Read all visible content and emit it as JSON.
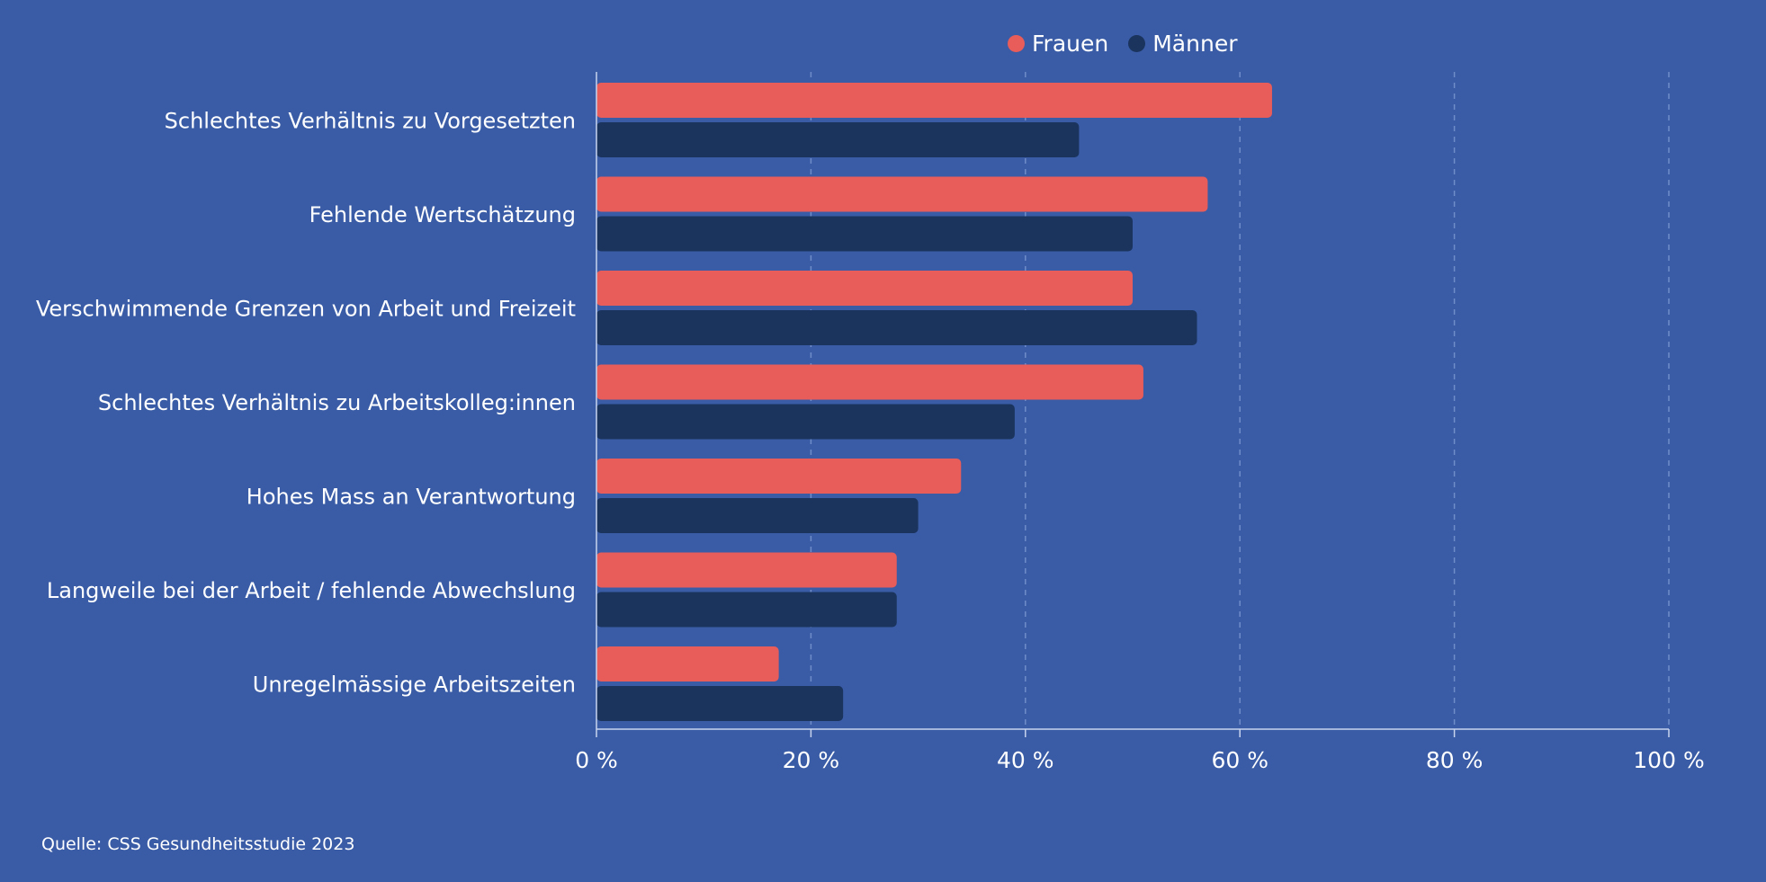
{
  "chart_data": {
    "type": "bar",
    "orientation": "horizontal",
    "categories": [
      "Schlechtes Verhältnis zu Vorgesetzten",
      "Fehlende Wertschätzung",
      "Verschwimmende Grenzen von Arbeit und Freizeit",
      "Schlechtes Verhältnis zu Arbeitskolleg:innen",
      "Hohes Mass an Verantwortung",
      "Langweile bei der Arbeit / fehlende Abwechslung",
      "Unregelmässige Arbeitszeiten"
    ],
    "series": [
      {
        "name": "Frauen",
        "color": "#e85c5a",
        "values": [
          63,
          57,
          50,
          51,
          34,
          28,
          17
        ]
      },
      {
        "name": "Männer",
        "color": "#1a345e",
        "values": [
          45,
          50,
          56,
          39,
          30,
          28,
          23
        ]
      }
    ],
    "xlim": [
      0,
      100
    ],
    "xticks": [
      0,
      20,
      40,
      60,
      80,
      100
    ],
    "xtick_labels": [
      "0 %",
      "20 %",
      "40 %",
      "60 %",
      "80 %",
      "100 %"
    ],
    "xlabel": "",
    "ylabel": "",
    "title": "",
    "grid": "vertical dashed",
    "legend_position": "top"
  },
  "source": "Quelle: CSS Gesundheitsstudie 2023",
  "colors": {
    "background": "#3a5ca6",
    "frauen": "#e85c5a",
    "maenner": "#1a345e",
    "grid": "#6f8dc9",
    "text": "#ffffff"
  }
}
